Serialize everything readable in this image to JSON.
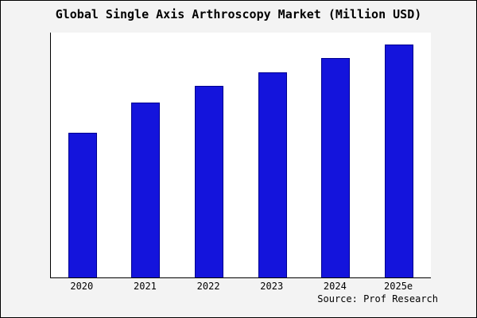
{
  "title": "Global Single Axis Arthroscopy Market (Million USD)",
  "source": "Source: Prof Research",
  "colors": {
    "bar": "#1414dc",
    "bar_edge": "#000090",
    "plot_background": "#ffffff",
    "page_background": "#f3f3f3",
    "axis": "#000000"
  },
  "chart_data": {
    "type": "bar",
    "title": "Global Single Axis Arthroscopy Market (Million USD)",
    "categories": [
      "2020",
      "2021",
      "2022",
      "2023",
      "2024",
      "2025e"
    ],
    "values": [
      62,
      75,
      82,
      88,
      94,
      100
    ],
    "xlabel": "",
    "ylabel": "",
    "ylim": [
      0,
      105
    ],
    "grid": false,
    "legend": false,
    "value_note": "no y-axis tick labels shown; values are estimated relative bar heights"
  }
}
